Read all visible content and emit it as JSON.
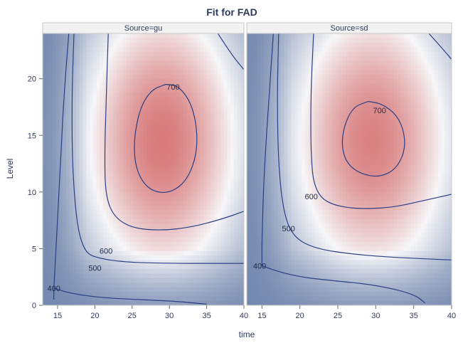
{
  "chart_data": [
    {
      "type": "heatmap",
      "title": "Fit for FAD",
      "panel": "Source=gu",
      "xlabel": "time",
      "ylabel": "Level",
      "xlim": [
        13,
        40
      ],
      "ylim": [
        0,
        24
      ],
      "xticks": [
        15,
        20,
        25,
        30,
        35,
        40
      ],
      "yticks": [
        0,
        5,
        10,
        15,
        20
      ],
      "contours": [
        {
          "level": 400,
          "label": "400",
          "label_at": [
            14.5,
            1.5
          ],
          "points": [
            [
              14.5,
              0.5
            ],
            [
              14.5,
              1.5
            ],
            [
              14.7,
              4
            ],
            [
              15.2,
              10
            ],
            [
              15.8,
              18
            ],
            [
              16.5,
              24
            ]
          ]
        },
        {
          "level": 400,
          "label": "",
          "label_at": null,
          "points": [
            [
              14.5,
              1.5
            ],
            [
              17,
              1.0
            ],
            [
              22,
              0.6
            ],
            [
              30,
              0.4
            ],
            [
              35,
              0.1
            ]
          ]
        },
        {
          "level": 500,
          "label": "500",
          "label_at": [
            20,
            3.3
          ],
          "points": [
            [
              17.2,
              24
            ],
            [
              16.9,
              18
            ],
            [
              17.0,
              12
            ],
            [
              17.6,
              7.0
            ],
            [
              18.6,
              4.8
            ],
            [
              20,
              4.2
            ],
            [
              24,
              3.8
            ],
            [
              30,
              3.7
            ],
            [
              35,
              3.7
            ],
            [
              40,
              3.7
            ]
          ]
        },
        {
          "level": 600,
          "label": "600",
          "label_at": [
            21.5,
            4.8
          ],
          "points": [
            [
              21.8,
              24
            ],
            [
              21.5,
              18
            ],
            [
              21.3,
              12.5
            ],
            [
              21.5,
              9.5
            ],
            [
              22.6,
              7.8
            ],
            [
              25,
              6.8
            ],
            [
              29,
              6.6
            ],
            [
              33,
              6.9
            ],
            [
              37,
              7.6
            ],
            [
              40,
              8.3
            ]
          ]
        },
        {
          "level": 600,
          "label": "",
          "label_at": null,
          "points": [
            [
              36.5,
              24
            ],
            [
              38.5,
              22.0
            ],
            [
              40,
              20.8
            ]
          ]
        },
        {
          "level": 700,
          "label": "700",
          "label_at": [
            30.5,
            19.3
          ],
          "points": [
            [
              29.5,
              19.5
            ],
            [
              27.5,
              19.0
            ],
            [
              26.0,
              17.3
            ],
            [
              25.2,
              14.5
            ],
            [
              25.5,
              12.0
            ],
            [
              27.0,
              10.3
            ],
            [
              29.5,
              9.8
            ],
            [
              32.0,
              10.7
            ],
            [
              33.5,
              12.8
            ],
            [
              33.8,
              15.2
            ],
            [
              33.0,
              17.8
            ],
            [
              31.2,
              19.4
            ],
            [
              29.5,
              19.5
            ]
          ]
        }
      ]
    },
    {
      "type": "heatmap",
      "title": "Fit for FAD",
      "panel": "Source=sd",
      "xlabel": "time",
      "ylabel": "Level",
      "xlim": [
        13,
        40
      ],
      "ylim": [
        0,
        24
      ],
      "xticks": [
        15,
        20,
        25,
        30,
        35,
        40
      ],
      "yticks": [
        0,
        5,
        10,
        15,
        20
      ],
      "contours": [
        {
          "level": 400,
          "label": "400",
          "label_at": [
            14.7,
            3.5
          ],
          "points": [
            [
              15.0,
              3.5
            ],
            [
              15.0,
              6
            ],
            [
              15.3,
              12
            ],
            [
              15.9,
              18
            ],
            [
              16.5,
              24
            ]
          ]
        },
        {
          "level": 400,
          "label": "",
          "label_at": null,
          "points": [
            [
              15.0,
              3.5
            ],
            [
              17,
              3.0
            ],
            [
              20,
              2.5
            ],
            [
              24,
              2.2
            ],
            [
              30,
              1.8
            ],
            [
              35,
              1.0
            ],
            [
              36.5,
              0.2
            ]
          ]
        },
        {
          "level": 500,
          "label": "500",
          "label_at": [
            18.5,
            6.8
          ],
          "points": [
            [
              17.2,
              24
            ],
            [
              17.0,
              18
            ],
            [
              17.2,
              12
            ],
            [
              17.9,
              8.0
            ],
            [
              19.2,
              6.0
            ],
            [
              22,
              5.0
            ],
            [
              27,
              4.5
            ],
            [
              33,
              4.2
            ],
            [
              40,
              4.0
            ]
          ]
        },
        {
          "level": 600,
          "label": "600",
          "label_at": [
            21.5,
            9.6
          ],
          "points": [
            [
              21.8,
              24
            ],
            [
              21.4,
              18
            ],
            [
              21.5,
              12.0
            ],
            [
              22.2,
              10.0
            ],
            [
              23.7,
              9.0
            ],
            [
              27,
              8.5
            ],
            [
              32,
              8.6
            ],
            [
              36,
              9.2
            ],
            [
              40,
              9.8
            ]
          ]
        },
        {
          "level": 600,
          "label": "",
          "label_at": null,
          "points": [
            [
              37,
              24
            ],
            [
              39,
              22.5
            ],
            [
              40,
              21.7
            ]
          ]
        },
        {
          "level": 700,
          "label": "700",
          "label_at": [
            30.5,
            17.2
          ],
          "points": [
            [
              29,
              18.0
            ],
            [
              27.0,
              17.5
            ],
            [
              25.8,
              15.8
            ],
            [
              25.5,
              14.0
            ],
            [
              26.2,
              12.5
            ],
            [
              28.0,
              11.6
            ],
            [
              30.5,
              11.3
            ],
            [
              32.6,
              12.0
            ],
            [
              33.8,
              13.5
            ],
            [
              33.8,
              15.2
            ],
            [
              32.8,
              16.8
            ],
            [
              30.8,
              17.8
            ],
            [
              29,
              18.0
            ]
          ]
        }
      ]
    }
  ]
}
